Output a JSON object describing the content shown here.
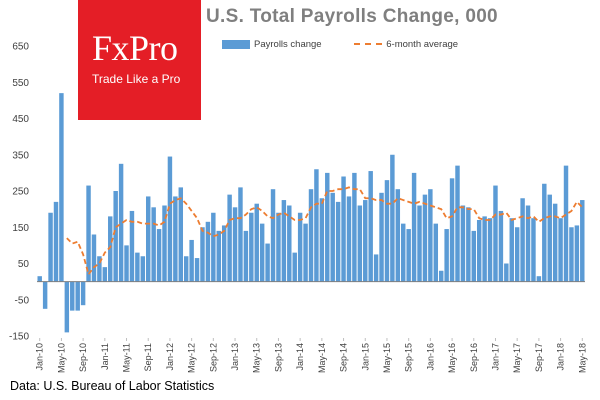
{
  "title": "U.S. Total Payrolls Change, 000",
  "logo": {
    "brand": "FxPro",
    "tagline": "Trade Like a Pro"
  },
  "source": "Data: U.S. Bureau of Labor Statistics",
  "colors": {
    "bars": "#5b9bd5",
    "average_line": "#ed7d31",
    "logo_background": "#e41e26",
    "title": "#7f7f7f"
  },
  "chart_data": {
    "type": "bar",
    "title": "U.S. Total Payrolls Change, 000",
    "xlabel": "",
    "ylabel": "",
    "ylim": [
      -150,
      650
    ],
    "yticks": [
      650,
      550,
      450,
      350,
      250,
      150,
      50,
      -50,
      -150
    ],
    "grid": false,
    "legend_position": "top",
    "x_tick_labels": [
      "Jan-10",
      "May-10",
      "Sep-10",
      "Jan-11",
      "May-11",
      "Sep-11",
      "Jan-12",
      "May-12",
      "Sep-12",
      "Jan-13",
      "May-13",
      "Sep-13",
      "Jan-14",
      "May-14",
      "Sep-14",
      "Jan-15",
      "May-15",
      "Sep-15",
      "Jan-16",
      "May-16",
      "Sep-16",
      "Jan-17",
      "May-17",
      "Sep-17",
      "Jan-18",
      "May-18"
    ],
    "categories": [
      "Jan-10",
      "Feb-10",
      "Mar-10",
      "Apr-10",
      "May-10",
      "Jun-10",
      "Jul-10",
      "Aug-10",
      "Sep-10",
      "Oct-10",
      "Nov-10",
      "Dec-10",
      "Jan-11",
      "Feb-11",
      "Mar-11",
      "Apr-11",
      "May-11",
      "Jun-11",
      "Jul-11",
      "Aug-11",
      "Sep-11",
      "Oct-11",
      "Nov-11",
      "Dec-11",
      "Jan-12",
      "Feb-12",
      "Mar-12",
      "Apr-12",
      "May-12",
      "Jun-12",
      "Jul-12",
      "Aug-12",
      "Sep-12",
      "Oct-12",
      "Nov-12",
      "Dec-12",
      "Jan-13",
      "Feb-13",
      "Mar-13",
      "Apr-13",
      "May-13",
      "Jun-13",
      "Jul-13",
      "Aug-13",
      "Sep-13",
      "Oct-13",
      "Nov-13",
      "Dec-13",
      "Jan-14",
      "Feb-14",
      "Mar-14",
      "Apr-14",
      "May-14",
      "Jun-14",
      "Jul-14",
      "Aug-14",
      "Sep-14",
      "Oct-14",
      "Nov-14",
      "Dec-14",
      "Jan-15",
      "Feb-15",
      "Mar-15",
      "Apr-15",
      "May-15",
      "Jun-15",
      "Jul-15",
      "Aug-15",
      "Sep-15",
      "Oct-15",
      "Nov-15",
      "Dec-15",
      "Jan-16",
      "Feb-16",
      "Mar-16",
      "Apr-16",
      "May-16",
      "Jun-16",
      "Jul-16",
      "Aug-16",
      "Sep-16",
      "Oct-16",
      "Nov-16",
      "Dec-16",
      "Jan-17",
      "Feb-17",
      "Mar-17",
      "Apr-17",
      "May-17",
      "Jun-17",
      "Jul-17",
      "Aug-17",
      "Sep-17",
      "Oct-17",
      "Nov-17",
      "Dec-17",
      "Jan-18",
      "Feb-18",
      "Mar-18",
      "Apr-18",
      "May-18"
    ],
    "series": [
      {
        "name": "Payrolls change",
        "type": "bar",
        "values": [
          15,
          -75,
          190,
          220,
          520,
          -140,
          -80,
          -80,
          -65,
          265,
          130,
          70,
          40,
          180,
          250,
          325,
          100,
          195,
          80,
          70,
          235,
          205,
          145,
          210,
          345,
          235,
          260,
          70,
          115,
          65,
          150,
          165,
          190,
          140,
          155,
          240,
          205,
          260,
          140,
          190,
          215,
          160,
          105,
          255,
          190,
          225,
          210,
          80,
          190,
          160,
          255,
          310,
          230,
          300,
          245,
          220,
          290,
          235,
          300,
          210,
          225,
          305,
          75,
          245,
          280,
          350,
          255,
          160,
          145,
          300,
          210,
          240,
          255,
          160,
          30,
          145,
          285,
          320,
          210,
          205,
          140,
          170,
          180,
          175,
          265,
          195,
          50,
          175,
          150,
          230,
          210,
          175,
          15,
          270,
          240,
          215,
          175,
          320,
          150,
          155,
          225
        ]
      },
      {
        "name": "6-month average",
        "type": "line",
        "values": [
          null,
          null,
          null,
          null,
          null,
          120,
          105,
          110,
          75,
          20,
          40,
          50,
          80,
          95,
          150,
          160,
          170,
          165,
          165,
          160,
          160,
          160,
          155,
          165,
          215,
          225,
          230,
          215,
          195,
          175,
          140,
          135,
          125,
          130,
          140,
          170,
          175,
          175,
          185,
          200,
          205,
          195,
          180,
          175,
          185,
          190,
          180,
          170,
          170,
          175,
          205,
          215,
          215,
          250,
          250,
          255,
          255,
          260,
          255,
          255,
          230,
          230,
          225,
          225,
          215,
          215,
          230,
          225,
          220,
          215,
          220,
          215,
          210,
          205,
          200,
          175,
          180,
          205,
          205,
          200,
          200,
          175,
          170,
          170,
          185,
          185,
          190,
          170,
          175,
          180,
          175,
          180,
          165,
          175,
          180,
          180,
          175,
          185,
          195,
          220,
          205
        ]
      }
    ]
  }
}
